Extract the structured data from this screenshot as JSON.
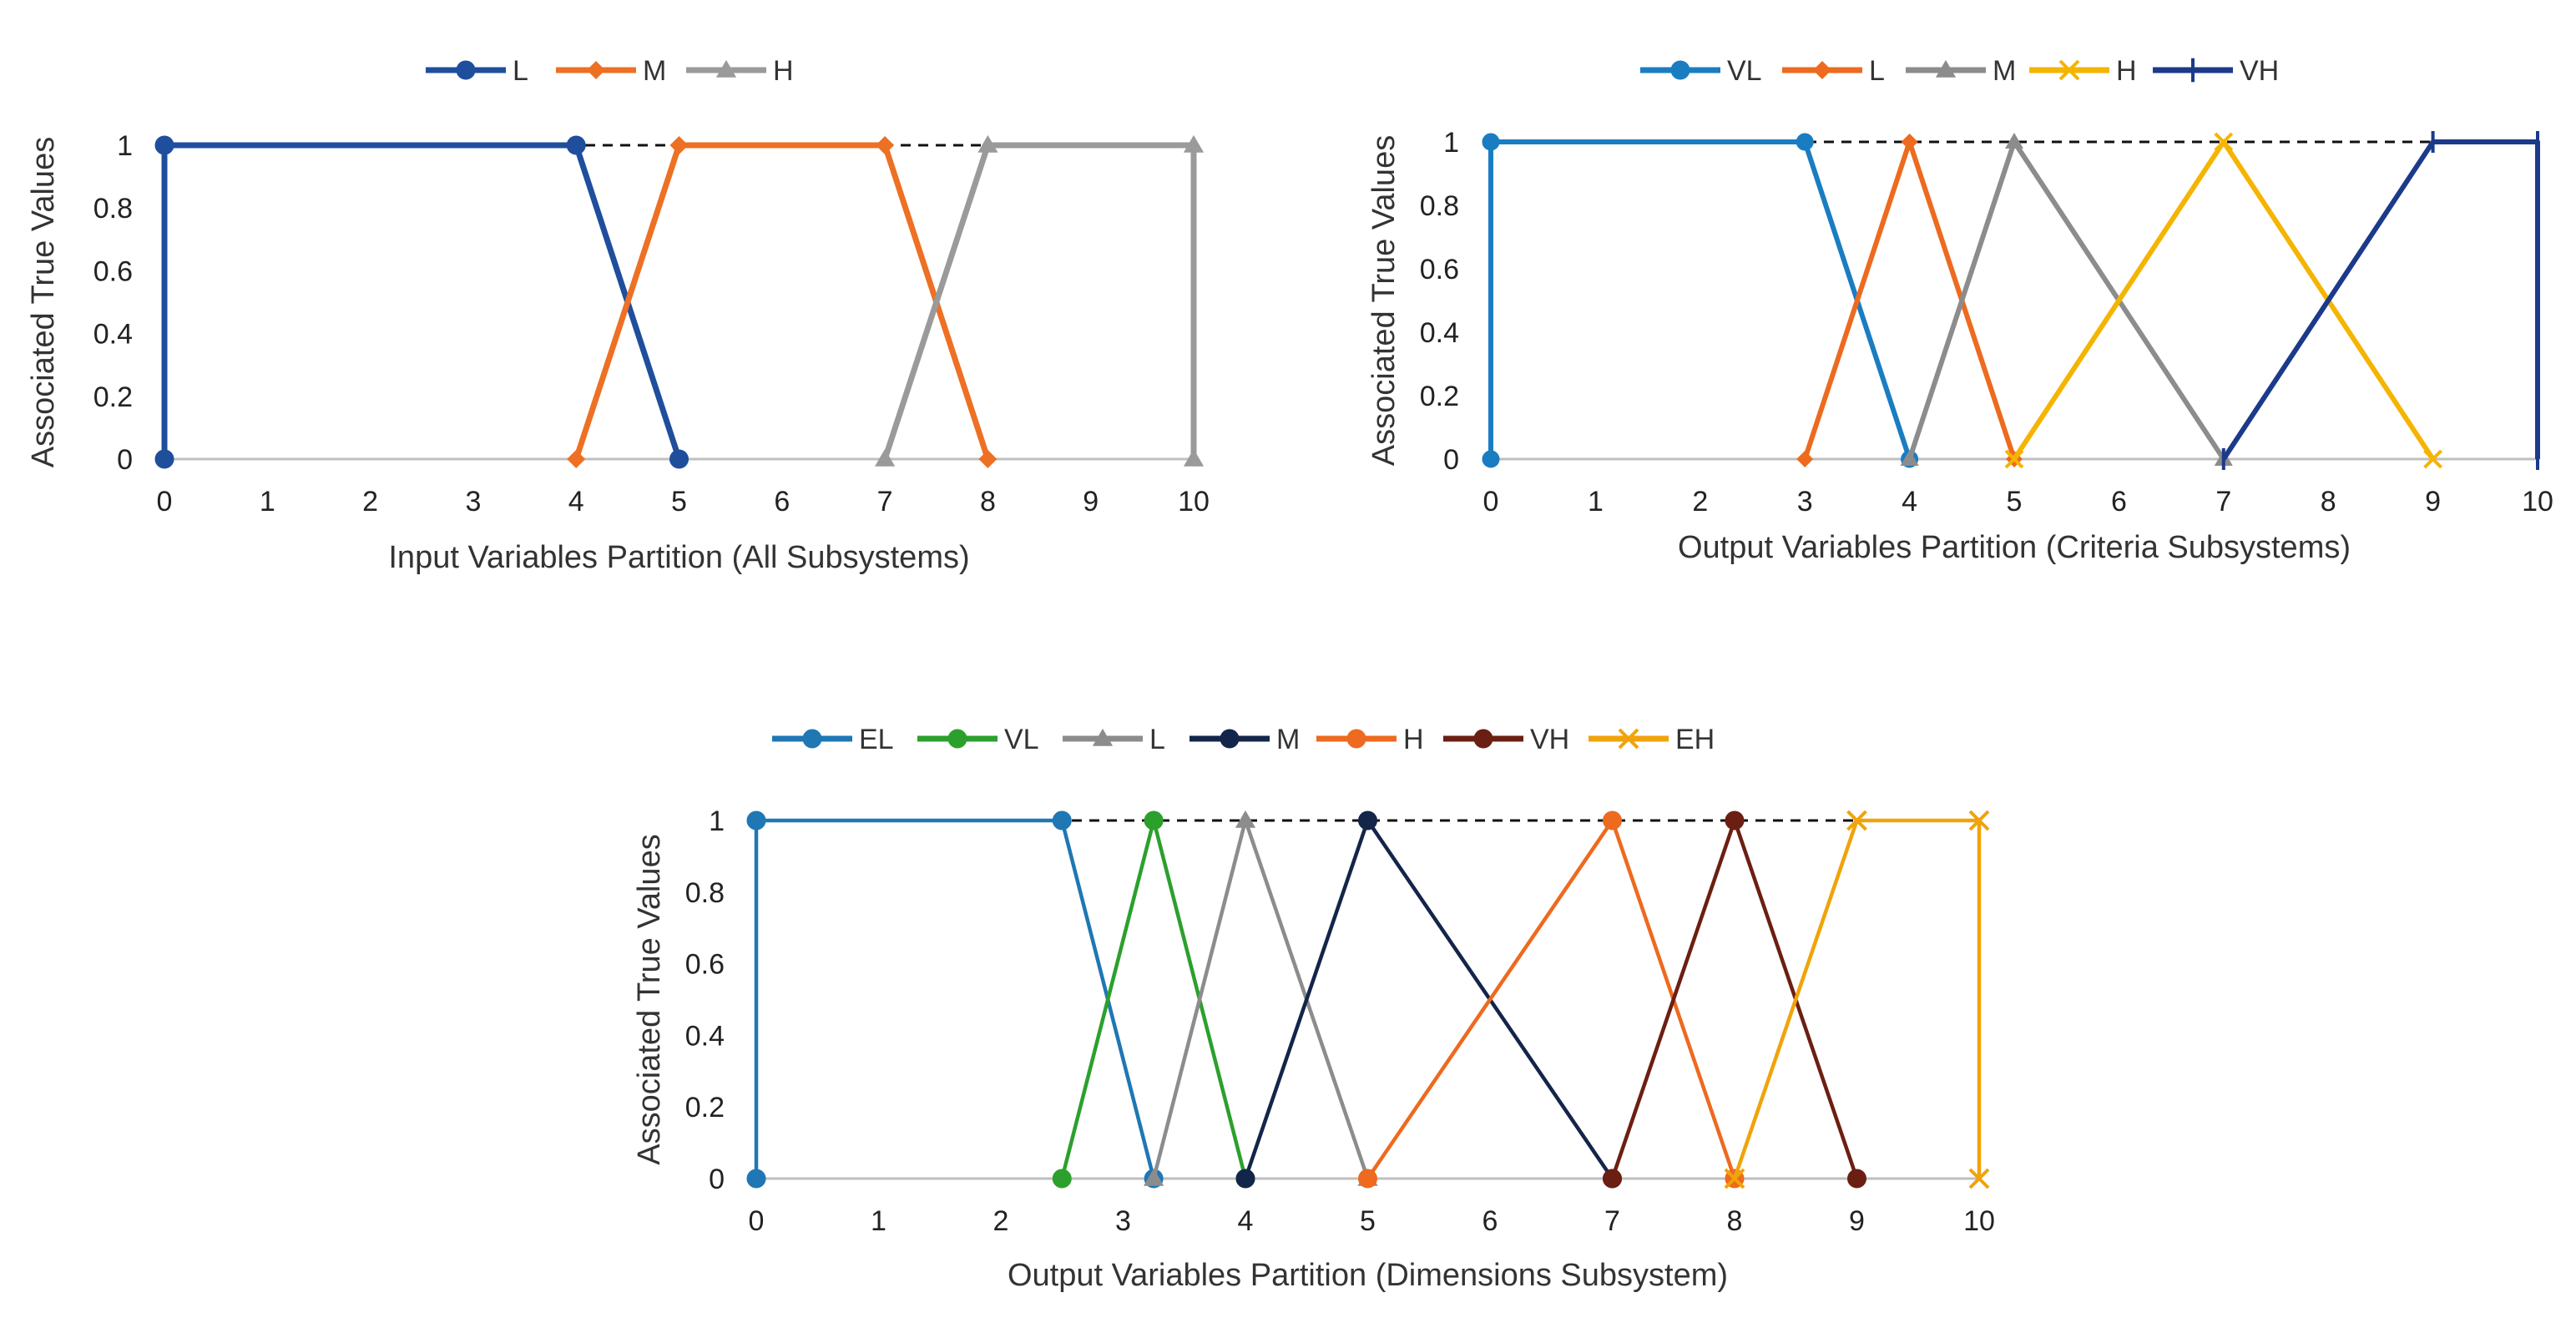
{
  "chart_data": [
    {
      "type": "line",
      "xlabel": "Input Variables Partition (All Subsystems)",
      "ylabel": "Associated True Values",
      "xticks": [
        "0",
        "1",
        "2",
        "3",
        "4",
        "5",
        "6",
        "7",
        "8",
        "9",
        "10"
      ],
      "yticks": [
        "0",
        "0.2",
        "0.4",
        "0.6",
        "0.8",
        "1"
      ],
      "xlim": [
        0,
        10
      ],
      "ylim": [
        0,
        1
      ],
      "reference_line": {
        "style": "dashed",
        "y": 1,
        "x": [
          0,
          10
        ]
      },
      "series": [
        {
          "name": "L",
          "color": "#1f4e9c",
          "marker": "circle",
          "x": [
            0,
            0,
            4,
            5
          ],
          "y": [
            0,
            1,
            1,
            0
          ]
        },
        {
          "name": "M",
          "color": "#ed7024",
          "marker": "diamond",
          "x": [
            4,
            5,
            7,
            8
          ],
          "y": [
            0,
            1,
            1,
            0
          ]
        },
        {
          "name": "H",
          "color": "#9a9a9a",
          "marker": "triangle",
          "x": [
            7,
            8,
            10,
            10
          ],
          "y": [
            0,
            1,
            1,
            0
          ]
        }
      ]
    },
    {
      "type": "line",
      "xlabel": "Output Variables Partition (Criteria Subsystems)",
      "ylabel": "Associated True Values",
      "xticks": [
        "0",
        "1",
        "2",
        "3",
        "4",
        "5",
        "6",
        "7",
        "8",
        "9",
        "10"
      ],
      "yticks": [
        "0",
        "0.2",
        "0.4",
        "0.6",
        "0.8",
        "1"
      ],
      "xlim": [
        0,
        10
      ],
      "ylim": [
        0,
        1
      ],
      "reference_line": {
        "style": "dashed",
        "y": 1,
        "x": [
          0,
          10
        ]
      },
      "series": [
        {
          "name": "VL",
          "color": "#1a7dc2",
          "marker": "circle",
          "x": [
            0,
            0,
            3,
            4
          ],
          "y": [
            0,
            1,
            1,
            0
          ]
        },
        {
          "name": "L",
          "color": "#ed6a1f",
          "marker": "diamond",
          "x": [
            3,
            4,
            5
          ],
          "y": [
            0,
            1,
            0
          ]
        },
        {
          "name": "M",
          "color": "#8c8c8c",
          "marker": "triangle",
          "x": [
            4,
            5,
            7
          ],
          "y": [
            0,
            1,
            0
          ]
        },
        {
          "name": "H",
          "color": "#f5b400",
          "marker": "x",
          "x": [
            5,
            7,
            9
          ],
          "y": [
            0,
            1,
            0
          ]
        },
        {
          "name": "VH",
          "color": "#1c3a8a",
          "marker": "plus",
          "x": [
            7,
            9,
            10,
            10
          ],
          "y": [
            0,
            1,
            1,
            0
          ]
        }
      ]
    },
    {
      "type": "line",
      "xlabel": "Output Variables Partition (Dimensions Subsystem)",
      "ylabel": "Associated True Values",
      "xticks": [
        "0",
        "1",
        "2",
        "3",
        "4",
        "5",
        "6",
        "7",
        "8",
        "9",
        "10"
      ],
      "yticks": [
        "0",
        "0.2",
        "0.4",
        "0.6",
        "0.8",
        "1"
      ],
      "xlim": [
        0,
        10
      ],
      "ylim": [
        0,
        1
      ],
      "reference_line": {
        "style": "dashed",
        "y": 1,
        "x": [
          0,
          10
        ]
      },
      "series": [
        {
          "name": "EL",
          "color": "#1f77b4",
          "marker": "circle",
          "x": [
            0,
            0,
            2.5,
            3.25
          ],
          "y": [
            0,
            1,
            1,
            0
          ]
        },
        {
          "name": "VL",
          "color": "#2ca02c",
          "marker": "circle",
          "x": [
            2.5,
            3.25,
            4
          ],
          "y": [
            0,
            1,
            0
          ]
        },
        {
          "name": "L",
          "color": "#8c8c8c",
          "marker": "triangle",
          "x": [
            3.25,
            4,
            5
          ],
          "y": [
            0,
            1,
            0
          ]
        },
        {
          "name": "M",
          "color": "#14254a",
          "marker": "circle",
          "x": [
            4,
            5,
            7
          ],
          "y": [
            0,
            1,
            0
          ]
        },
        {
          "name": "H",
          "color": "#ed6a1f",
          "marker": "circle",
          "x": [
            5,
            7,
            8
          ],
          "y": [
            0,
            1,
            0
          ]
        },
        {
          "name": "VH",
          "color": "#6b1f12",
          "marker": "circle",
          "x": [
            7,
            8,
            9
          ],
          "y": [
            0,
            1,
            0
          ]
        },
        {
          "name": "EH",
          "color": "#f0a30a",
          "marker": "x",
          "x": [
            8,
            9,
            10,
            10
          ],
          "y": [
            0,
            1,
            1,
            0
          ]
        }
      ]
    }
  ]
}
